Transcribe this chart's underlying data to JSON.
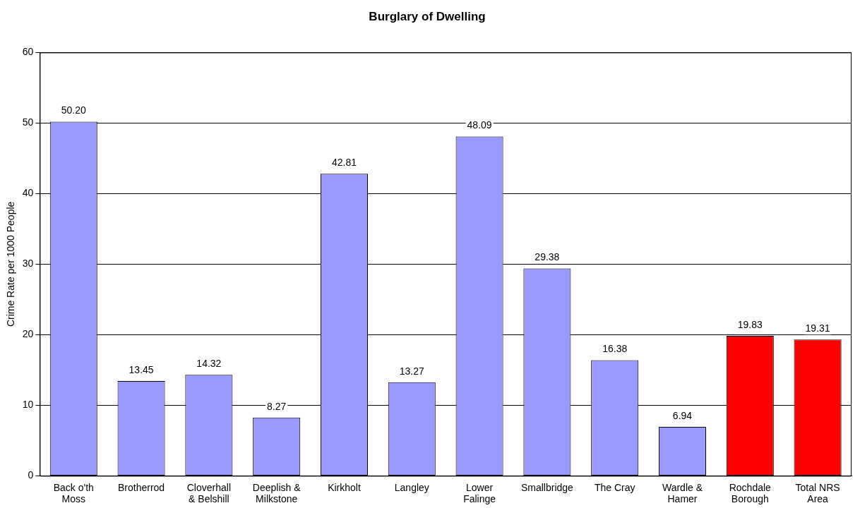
{
  "chart_data": {
    "type": "bar",
    "title": "Burglary of Dwelling",
    "ylabel": "Crime Rate per 1000 People",
    "categories": [
      "Back o'th Moss",
      "Brotherrod",
      "Cloverhall & Belshill",
      "Deeplish & Milkstone",
      "Kirkholt",
      "Langley",
      "Lower Falinge",
      "Smallbridge",
      "The Cray",
      "Wardle & Hamer",
      "Rochdale Borough",
      "Total NRS Area"
    ],
    "values": [
      50.2,
      13.45,
      14.32,
      8.27,
      42.81,
      13.27,
      48.09,
      29.38,
      16.38,
      6.94,
      19.83,
      19.31
    ],
    "value_labels": [
      "50.20",
      "13.45",
      "14.32",
      "8.27",
      "42.81",
      "13.27",
      "48.09",
      "29.38",
      "16.38",
      "6.94",
      "19.83",
      "19.31"
    ],
    "colors": [
      "#9999ff",
      "#9999ff",
      "#9999ff",
      "#9999ff",
      "#9999ff",
      "#9999ff",
      "#9999ff",
      "#9999ff",
      "#9999ff",
      "#9999ff",
      "#ff0000",
      "#ff0000"
    ],
    "ylim": [
      0,
      60
    ],
    "yticks": [
      0,
      10,
      20,
      30,
      40,
      50,
      60
    ],
    "grid": "y",
    "legend": false
  }
}
